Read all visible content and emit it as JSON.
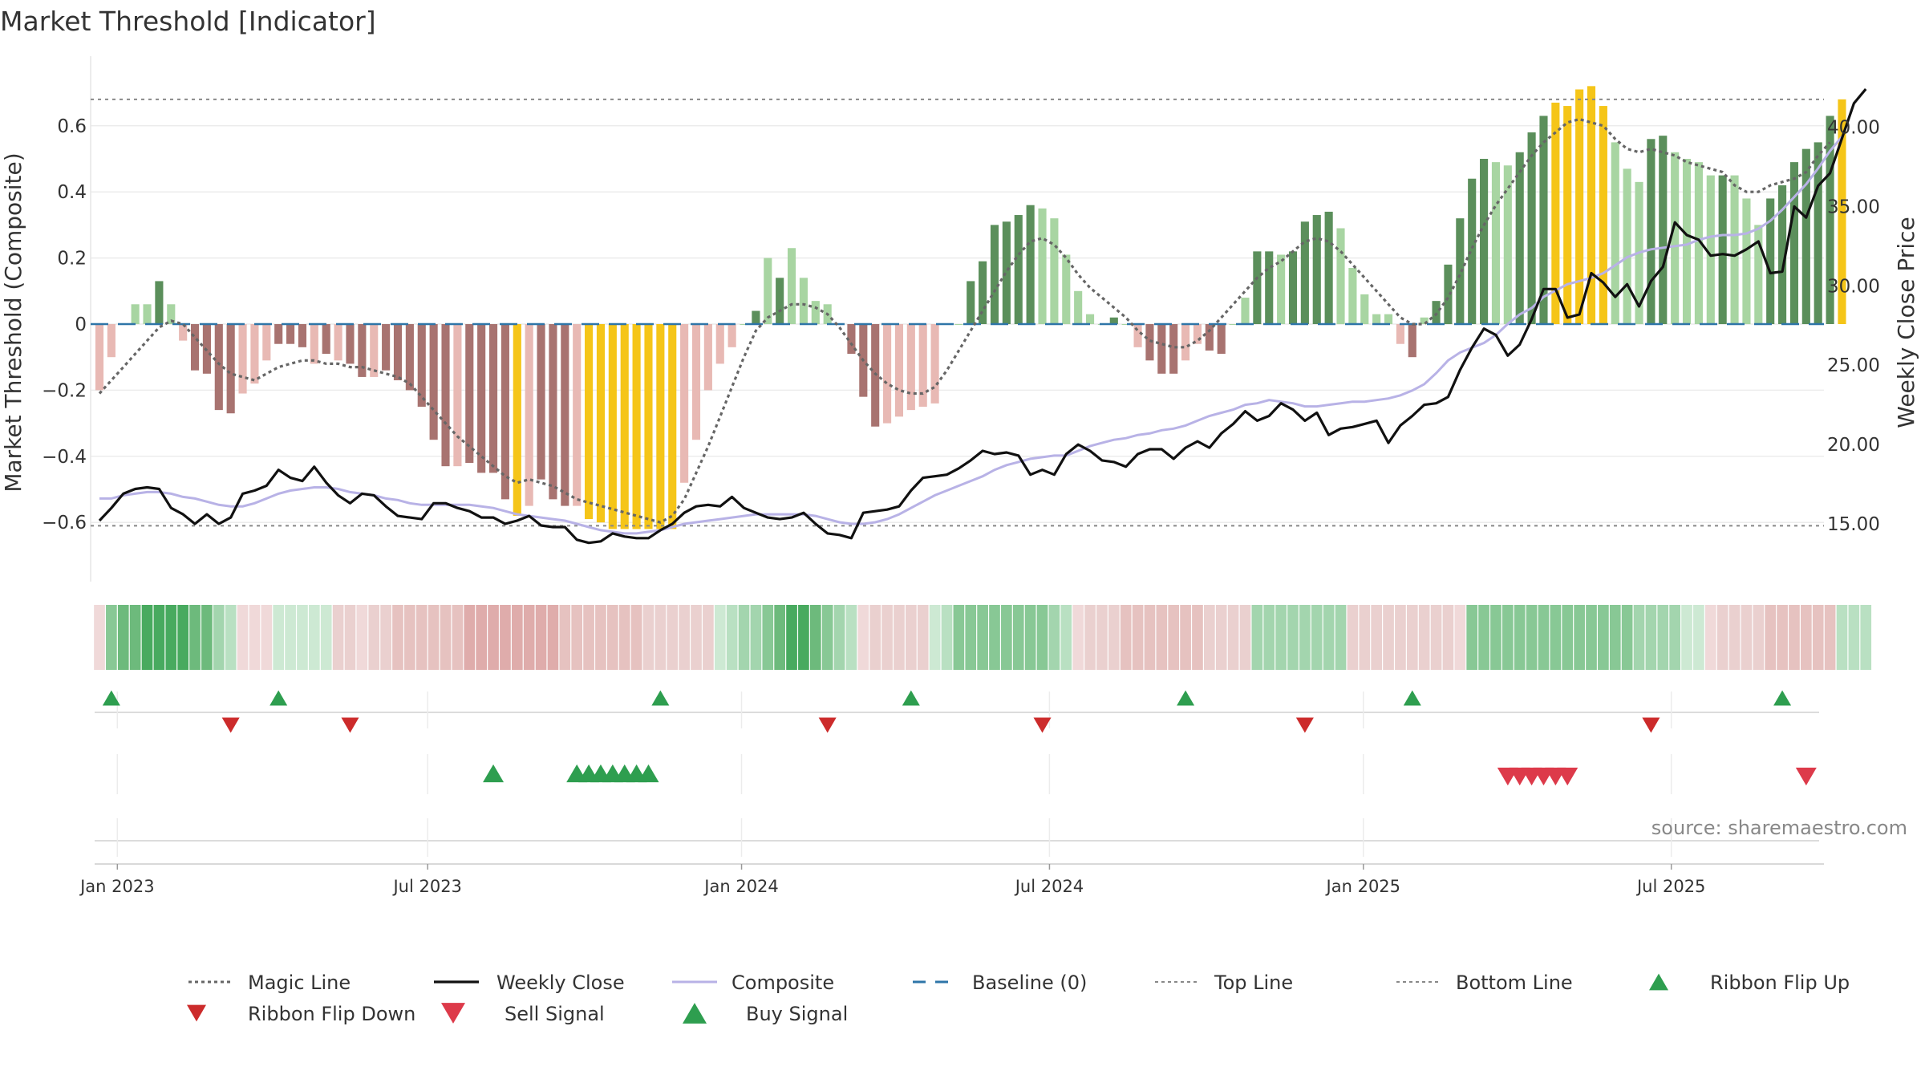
{
  "chart_data": {
    "type": "bar",
    "title": "Market Threshold [Indicator]",
    "ylabel_left": "Market Threshold (Composite)",
    "ylabel_right": "Weekly Close Price",
    "source": "source: sharemaestro.com",
    "ylim_left": [
      -0.78,
      0.78
    ],
    "ylim_right": [
      9.0,
      44.0
    ],
    "yticks_left": [
      {
        "v": 0.6,
        "label": "0.6"
      },
      {
        "v": 0.4,
        "label": "0.4"
      },
      {
        "v": 0.2,
        "label": "0.2"
      },
      {
        "v": 0,
        "label": "0"
      },
      {
        "v": -0.2,
        "label": "−0.2"
      },
      {
        "v": -0.4,
        "label": "−0.4"
      },
      {
        "v": -0.6,
        "label": "−0.6"
      }
    ],
    "yticks_right": [
      {
        "v": 40,
        "label": "40.00"
      },
      {
        "v": 35,
        "label": "35.00"
      },
      {
        "v": 30,
        "label": "30.00"
      },
      {
        "v": 25,
        "label": "25.00"
      },
      {
        "v": 20,
        "label": "20.00"
      },
      {
        "v": 15,
        "label": "15.00"
      }
    ],
    "xticks": [
      {
        "i": 1.5,
        "label": "Jan 2023"
      },
      {
        "i": 27.5,
        "label": "Jul 2023"
      },
      {
        "i": 53.8,
        "label": "Jan 2024"
      },
      {
        "i": 79.6,
        "label": "Jul 2024"
      },
      {
        "i": 105.9,
        "label": "Jan 2025"
      },
      {
        "i": 131.7,
        "label": "Jul 2025"
      }
    ],
    "top_line": 0.68,
    "bottom_line": -0.61,
    "composite": [
      -0.2,
      -0.1,
      0.0,
      0.06,
      0.06,
      0.13,
      0.06,
      -0.05,
      -0.14,
      -0.15,
      -0.26,
      -0.27,
      -0.21,
      -0.18,
      -0.11,
      -0.06,
      -0.06,
      -0.07,
      -0.12,
      -0.09,
      -0.11,
      -0.12,
      -0.16,
      -0.16,
      -0.14,
      -0.17,
      -0.2,
      -0.25,
      -0.35,
      -0.43,
      -0.43,
      -0.42,
      -0.45,
      -0.45,
      -0.53,
      -0.58,
      -0.55,
      -0.47,
      -0.53,
      -0.55,
      -0.55,
      -0.59,
      -0.6,
      -0.62,
      -0.62,
      -0.62,
      -0.62,
      -0.62,
      -0.62,
      -0.48,
      -0.35,
      -0.2,
      -0.12,
      -0.07,
      0.0,
      0.04,
      0.2,
      0.14,
      0.23,
      0.14,
      0.07,
      0.06,
      0.0,
      -0.09,
      -0.22,
      -0.31,
      -0.3,
      -0.28,
      -0.26,
      -0.25,
      -0.24,
      -0.0,
      0.0,
      0.13,
      0.19,
      0.3,
      0.31,
      0.33,
      0.36,
      0.35,
      0.32,
      0.21,
      0.1,
      0.03,
      0.0,
      0.02,
      0.0,
      -0.07,
      -0.11,
      -0.15,
      -0.15,
      -0.11,
      -0.06,
      -0.08,
      -0.09,
      0.0,
      0.08,
      0.22,
      0.22,
      0.21,
      0.22,
      0.31,
      0.33,
      0.34,
      0.29,
      0.17,
      0.09,
      0.03,
      0.03,
      -0.06,
      -0.1,
      0.02,
      0.07,
      0.18,
      0.32,
      0.44,
      0.5,
      0.49,
      0.48,
      0.52,
      0.58,
      0.63,
      0.67,
      0.66,
      0.71,
      0.72,
      0.66,
      0.55,
      0.47,
      0.43,
      0.56,
      0.57,
      0.52,
      0.5,
      0.49,
      0.45,
      0.45,
      0.45,
      0.38,
      0.3,
      0.38,
      0.42,
      0.49,
      0.53,
      0.55,
      0.63,
      0.68
    ],
    "bar_colors": [
      "#e8b9b4",
      "#e8b9b4",
      "#e8b9b4",
      "#a8d5a2",
      "#a8d5a2",
      "#5b8f5b",
      "#a8d5a2",
      "#e8b9b4",
      "#a87370",
      "#a87370",
      "#a87370",
      "#a87370",
      "#e8b9b4",
      "#e8b9b4",
      "#e8b9b4",
      "#a87370",
      "#a87370",
      "#a87370",
      "#e8b9b4",
      "#a87370",
      "#e8b9b4",
      "#a87370",
      "#a87370",
      "#e8b9b4",
      "#a87370",
      "#a87370",
      "#a87370",
      "#a87370",
      "#a87370",
      "#a87370",
      "#e8b9b4",
      "#a87370",
      "#a87370",
      "#a87370",
      "#a87370",
      "#f5c518",
      "#e8b9b4",
      "#a87370",
      "#a87370",
      "#a87370",
      "#e8b9b4",
      "#f5c518",
      "#f5c518",
      "#f5c518",
      "#f5c518",
      "#f5c518",
      "#f5c518",
      "#f5c518",
      "#f5c518",
      "#e8b9b4",
      "#e8b9b4",
      "#e8b9b4",
      "#e8b9b4",
      "#e8b9b4",
      "#a8d5a2",
      "#5b8f5b",
      "#a8d5a2",
      "#5b8f5b",
      "#a8d5a2",
      "#a8d5a2",
      "#a8d5a2",
      "#a8d5a2",
      "#e8b9b4",
      "#a87370",
      "#a87370",
      "#a87370",
      "#e8b9b4",
      "#e8b9b4",
      "#e8b9b4",
      "#e8b9b4",
      "#e8b9b4",
      "#a8d5a2",
      "#a8d5a2",
      "#5b8f5b",
      "#5b8f5b",
      "#5b8f5b",
      "#5b8f5b",
      "#5b8f5b",
      "#5b8f5b",
      "#a8d5a2",
      "#a8d5a2",
      "#a8d5a2",
      "#a8d5a2",
      "#a8d5a2",
      "#a8d5a2",
      "#5b8f5b",
      "#a8d5a2",
      "#e8b9b4",
      "#a87370",
      "#a87370",
      "#a87370",
      "#e8b9b4",
      "#e8b9b4",
      "#a87370",
      "#a87370",
      "#a8d5a2",
      "#a8d5a2",
      "#5b8f5b",
      "#5b8f5b",
      "#a8d5a2",
      "#5b8f5b",
      "#5b8f5b",
      "#5b8f5b",
      "#5b8f5b",
      "#a8d5a2",
      "#a8d5a2",
      "#a8d5a2",
      "#a8d5a2",
      "#a8d5a2",
      "#e8b9b4",
      "#a87370",
      "#a8d5a2",
      "#5b8f5b",
      "#5b8f5b",
      "#5b8f5b",
      "#5b8f5b",
      "#5b8f5b",
      "#a8d5a2",
      "#a8d5a2",
      "#5b8f5b",
      "#5b8f5b",
      "#5b8f5b",
      "#f5c518",
      "#f5c518",
      "#f5c518",
      "#f5c518",
      "#f5c518",
      "#a8d5a2",
      "#a8d5a2",
      "#a8d5a2",
      "#5b8f5b",
      "#5b8f5b",
      "#a8d5a2",
      "#a8d5a2",
      "#a8d5a2",
      "#a8d5a2",
      "#5b8f5b",
      "#a8d5a2",
      "#a8d5a2",
      "#a8d5a2",
      "#5b8f5b",
      "#5b8f5b",
      "#5b8f5b",
      "#5b8f5b",
      "#5b8f5b",
      "#5b8f5b",
      "#f5c518"
    ],
    "magic_line": [
      -0.21,
      -0.17,
      -0.13,
      -0.09,
      -0.05,
      -0.01,
      0.01,
      0.0,
      -0.04,
      -0.08,
      -0.12,
      -0.15,
      -0.16,
      -0.17,
      -0.15,
      -0.13,
      -0.12,
      -0.11,
      -0.11,
      -0.12,
      -0.12,
      -0.13,
      -0.13,
      -0.14,
      -0.15,
      -0.16,
      -0.18,
      -0.22,
      -0.26,
      -0.3,
      -0.34,
      -0.37,
      -0.4,
      -0.43,
      -0.46,
      -0.48,
      -0.47,
      -0.48,
      -0.49,
      -0.51,
      -0.53,
      -0.54,
      -0.55,
      -0.56,
      -0.57,
      -0.58,
      -0.59,
      -0.6,
      -0.58,
      -0.53,
      -0.45,
      -0.37,
      -0.28,
      -0.19,
      -0.1,
      -0.02,
      0.02,
      0.04,
      0.06,
      0.06,
      0.05,
      0.03,
      -0.01,
      -0.06,
      -0.11,
      -0.15,
      -0.18,
      -0.2,
      -0.21,
      -0.21,
      -0.19,
      -0.14,
      -0.08,
      -0.02,
      0.04,
      0.1,
      0.16,
      0.21,
      0.25,
      0.26,
      0.24,
      0.2,
      0.15,
      0.11,
      0.08,
      0.05,
      0.02,
      -0.02,
      -0.05,
      -0.06,
      -0.07,
      -0.07,
      -0.05,
      -0.02,
      0.02,
      0.06,
      0.1,
      0.14,
      0.17,
      0.19,
      0.22,
      0.25,
      0.26,
      0.25,
      0.22,
      0.18,
      0.14,
      0.1,
      0.06,
      0.02,
      0.0,
      0.0,
      0.03,
      0.08,
      0.15,
      0.23,
      0.3,
      0.36,
      0.41,
      0.46,
      0.51,
      0.55,
      0.58,
      0.61,
      0.62,
      0.61,
      0.6,
      0.56,
      0.53,
      0.52,
      0.53,
      0.52,
      0.51,
      0.49,
      0.48,
      0.47,
      0.46,
      0.42,
      0.4,
      0.4,
      0.42,
      0.43,
      0.44,
      0.46,
      0.51,
      0.55
    ],
    "weekly_close": [
      15.2,
      16.0,
      16.9,
      17.2,
      17.3,
      17.2,
      16.0,
      15.6,
      15.0,
      15.6,
      15.0,
      15.4,
      16.9,
      17.1,
      17.4,
      18.4,
      17.9,
      17.7,
      18.6,
      17.6,
      16.8,
      16.3,
      16.9,
      16.8,
      16.1,
      15.5,
      15.4,
      15.3,
      16.3,
      16.3,
      16.0,
      15.8,
      15.4,
      15.4,
      15.0,
      15.2,
      15.5,
      14.9,
      14.8,
      14.8,
      14.0,
      13.8,
      13.9,
      14.4,
      14.2,
      14.1,
      14.1,
      14.6,
      15.0,
      15.7,
      16.1,
      16.2,
      16.1,
      16.7,
      16.0,
      15.7,
      15.4,
      15.3,
      15.4,
      15.7,
      15.0,
      14.4,
      14.3,
      14.1,
      15.7,
      15.8,
      15.9,
      16.1,
      17.1,
      17.9,
      18.0,
      18.1,
      18.5,
      19.0,
      19.6,
      19.4,
      19.5,
      19.3,
      18.1,
      18.4,
      18.1,
      19.4,
      20.0,
      19.6,
      19.0,
      18.9,
      18.6,
      19.4,
      19.7,
      19.7,
      19.1,
      19.8,
      20.2,
      19.8,
      20.7,
      21.3,
      22.1,
      21.5,
      21.8,
      22.6,
      22.2,
      21.5,
      22.0,
      20.6,
      21.0,
      21.1,
      21.3,
      21.5,
      20.1,
      21.2,
      21.8,
      22.5,
      22.6,
      23.0,
      24.7,
      26.1,
      27.3,
      26.9,
      25.6,
      26.3,
      27.9,
      29.8,
      29.8,
      28.0,
      28.2,
      30.8,
      30.2,
      29.3,
      30.1,
      28.7,
      30.3,
      31.2,
      34.0,
      33.2,
      32.9,
      31.9,
      32.0,
      31.9,
      32.3,
      32.8,
      30.8,
      30.9,
      35.0,
      34.3,
      36.3,
      37.1,
      39.3,
      41.5,
      42.4
    ],
    "composite_line": [
      16.6,
      16.6,
      16.8,
      16.9,
      17.0,
      17.0,
      16.9,
      16.7,
      16.6,
      16.4,
      16.2,
      16.1,
      16.1,
      16.3,
      16.6,
      16.9,
      17.1,
      17.2,
      17.3,
      17.3,
      17.2,
      17.0,
      16.9,
      16.8,
      16.6,
      16.5,
      16.3,
      16.2,
      16.2,
      16.2,
      16.2,
      16.2,
      16.1,
      16.0,
      15.8,
      15.6,
      15.5,
      15.4,
      15.3,
      15.2,
      15.0,
      14.8,
      14.6,
      14.5,
      14.4,
      14.4,
      14.5,
      14.6,
      14.8,
      15.0,
      15.1,
      15.2,
      15.3,
      15.4,
      15.5,
      15.6,
      15.6,
      15.6,
      15.6,
      15.6,
      15.5,
      15.3,
      15.1,
      15.0,
      15.0,
      15.1,
      15.3,
      15.6,
      16.0,
      16.4,
      16.8,
      17.1,
      17.4,
      17.7,
      18.0,
      18.4,
      18.7,
      18.9,
      19.1,
      19.2,
      19.3,
      19.3,
      19.6,
      19.9,
      20.1,
      20.3,
      20.4,
      20.6,
      20.7,
      20.9,
      21.0,
      21.2,
      21.5,
      21.8,
      22.0,
      22.2,
      22.5,
      22.6,
      22.8,
      22.7,
      22.6,
      22.4,
      22.4,
      22.5,
      22.6,
      22.7,
      22.7,
      22.8,
      22.9,
      23.1,
      23.4,
      23.8,
      24.5,
      25.3,
      25.8,
      26.1,
      26.4,
      26.9,
      27.6,
      28.2,
      28.6,
      29.3,
      29.7,
      30.1,
      30.3,
      30.5,
      30.8,
      31.3,
      31.8,
      32.1,
      32.3,
      32.4,
      32.5,
      32.6,
      32.9,
      33.1,
      33.2,
      33.2,
      33.3,
      33.6,
      34.1,
      34.8,
      35.6,
      36.4,
      37.4,
      38.5,
      39.4
    ],
    "ribbon_colors": [
      "#f0d9d9",
      "#88c895",
      "#6dba7c",
      "#6dba7c",
      "#48aa5f",
      "#48aa5f",
      "#48aa5f",
      "#48aa5f",
      "#6dba7c",
      "#6dba7c",
      "#a3d5ae",
      "#b9e0c2",
      "#f0d9d9",
      "#f0d9d9",
      "#f0d9d9",
      "#cde9d3",
      "#cde9d3",
      "#cde9d3",
      "#cde9d3",
      "#cde9d3",
      "#ead0cf",
      "#ead0cf",
      "#f0d9d9",
      "#ead0cf",
      "#ead0cf",
      "#e6c2c0",
      "#e6c2c0",
      "#e6c2c0",
      "#e6c2c0",
      "#e6c2c0",
      "#e6c2c0",
      "#dfacab",
      "#dfacab",
      "#dfacab",
      "#dfacab",
      "#dfacab",
      "#dfacab",
      "#dfacab",
      "#dfacab",
      "#e6c2c0",
      "#e6c2c0",
      "#e6c2c0",
      "#e6c2c0",
      "#e6c2c0",
      "#e6c2c0",
      "#e6c2c0",
      "#ead0cf",
      "#ead0cf",
      "#ead0cf",
      "#ead0cf",
      "#ead0cf",
      "#ead0cf",
      "#cde9d3",
      "#b9e0c2",
      "#a3d5ae",
      "#a3d5ae",
      "#88c895",
      "#6dba7c",
      "#48aa5f",
      "#48aa5f",
      "#6dba7c",
      "#88c895",
      "#a3d5ae",
      "#b9e0c2",
      "#f0d9d9",
      "#ead0cf",
      "#ead0cf",
      "#ead0cf",
      "#ead0cf",
      "#ead0cf",
      "#cde9d3",
      "#b9e0c2",
      "#88c895",
      "#88c895",
      "#88c895",
      "#88c895",
      "#88c895",
      "#88c895",
      "#88c895",
      "#88c895",
      "#a3d5ae",
      "#b9e0c2",
      "#f0d9d9",
      "#ead0cf",
      "#ead0cf",
      "#ead0cf",
      "#e6c2c0",
      "#e6c2c0",
      "#e6c2c0",
      "#e6c2c0",
      "#e6c2c0",
      "#e6c2c0",
      "#e6c2c0",
      "#ead0cf",
      "#ead0cf",
      "#ead0cf",
      "#ead0cf",
      "#a3d5ae",
      "#a3d5ae",
      "#a3d5ae",
      "#a3d5ae",
      "#a3d5ae",
      "#a3d5ae",
      "#a3d5ae",
      "#a3d5ae",
      "#ead0cf",
      "#ead0cf",
      "#ead0cf",
      "#ead0cf",
      "#ead0cf",
      "#ead0cf",
      "#ead0cf",
      "#ead0cf",
      "#ead0cf",
      "#f0d9d9",
      "#88c895",
      "#88c895",
      "#88c895",
      "#88c895",
      "#88c895",
      "#88c895",
      "#88c895",
      "#88c895",
      "#88c895",
      "#88c895",
      "#88c895",
      "#88c895",
      "#88c895",
      "#88c895",
      "#a3d5ae",
      "#a3d5ae",
      "#a3d5ae",
      "#a3d5ae",
      "#cde9d3",
      "#cde9d3",
      "#f0d9d9",
      "#ead0cf",
      "#ead0cf",
      "#ead0cf",
      "#ead0cf",
      "#e6c2c0",
      "#e6c2c0",
      "#e6c2c0",
      "#e6c2c0",
      "#e6c2c0",
      "#e6c2c0",
      "#b9e0c2",
      "#b9e0c2",
      "#b9e0c2"
    ],
    "ribbon_flip_up": [
      1,
      15,
      47,
      68,
      91,
      110,
      141
    ],
    "ribbon_flip_down": [
      11,
      21,
      61,
      79,
      101,
      130
    ],
    "buy_signal": [
      33,
      40,
      41,
      42,
      43,
      44,
      45,
      46
    ],
    "sell_signal": [
      118,
      119,
      120,
      121,
      122,
      123,
      143
    ],
    "legend": [
      {
        "key": "magic",
        "label": "Magic Line"
      },
      {
        "key": "close",
        "label": "Weekly Close"
      },
      {
        "key": "composite",
        "label": "Composite"
      },
      {
        "key": "baseline",
        "label": "Baseline (0)"
      },
      {
        "key": "top",
        "label": "Top Line"
      },
      {
        "key": "bottom",
        "label": "Bottom Line"
      },
      {
        "key": "flipup",
        "label": "Ribbon Flip Up"
      },
      {
        "key": "flipdown",
        "label": "Ribbon Flip Down"
      },
      {
        "key": "sell",
        "label": "Sell Signal"
      },
      {
        "key": "buy",
        "label": "Buy Signal"
      }
    ],
    "colors": {
      "magic": "#666666",
      "close": "#111111",
      "composite": "#b8b2e6",
      "baseline": "#2e75a8",
      "refline": "#888888",
      "flipup": "#2e9e4f",
      "flipdown": "#cc2b2b",
      "buy": "#2e9e4f",
      "sell": "#dd3a4a"
    },
    "grid": true,
    "legend_position": "bottom"
  }
}
